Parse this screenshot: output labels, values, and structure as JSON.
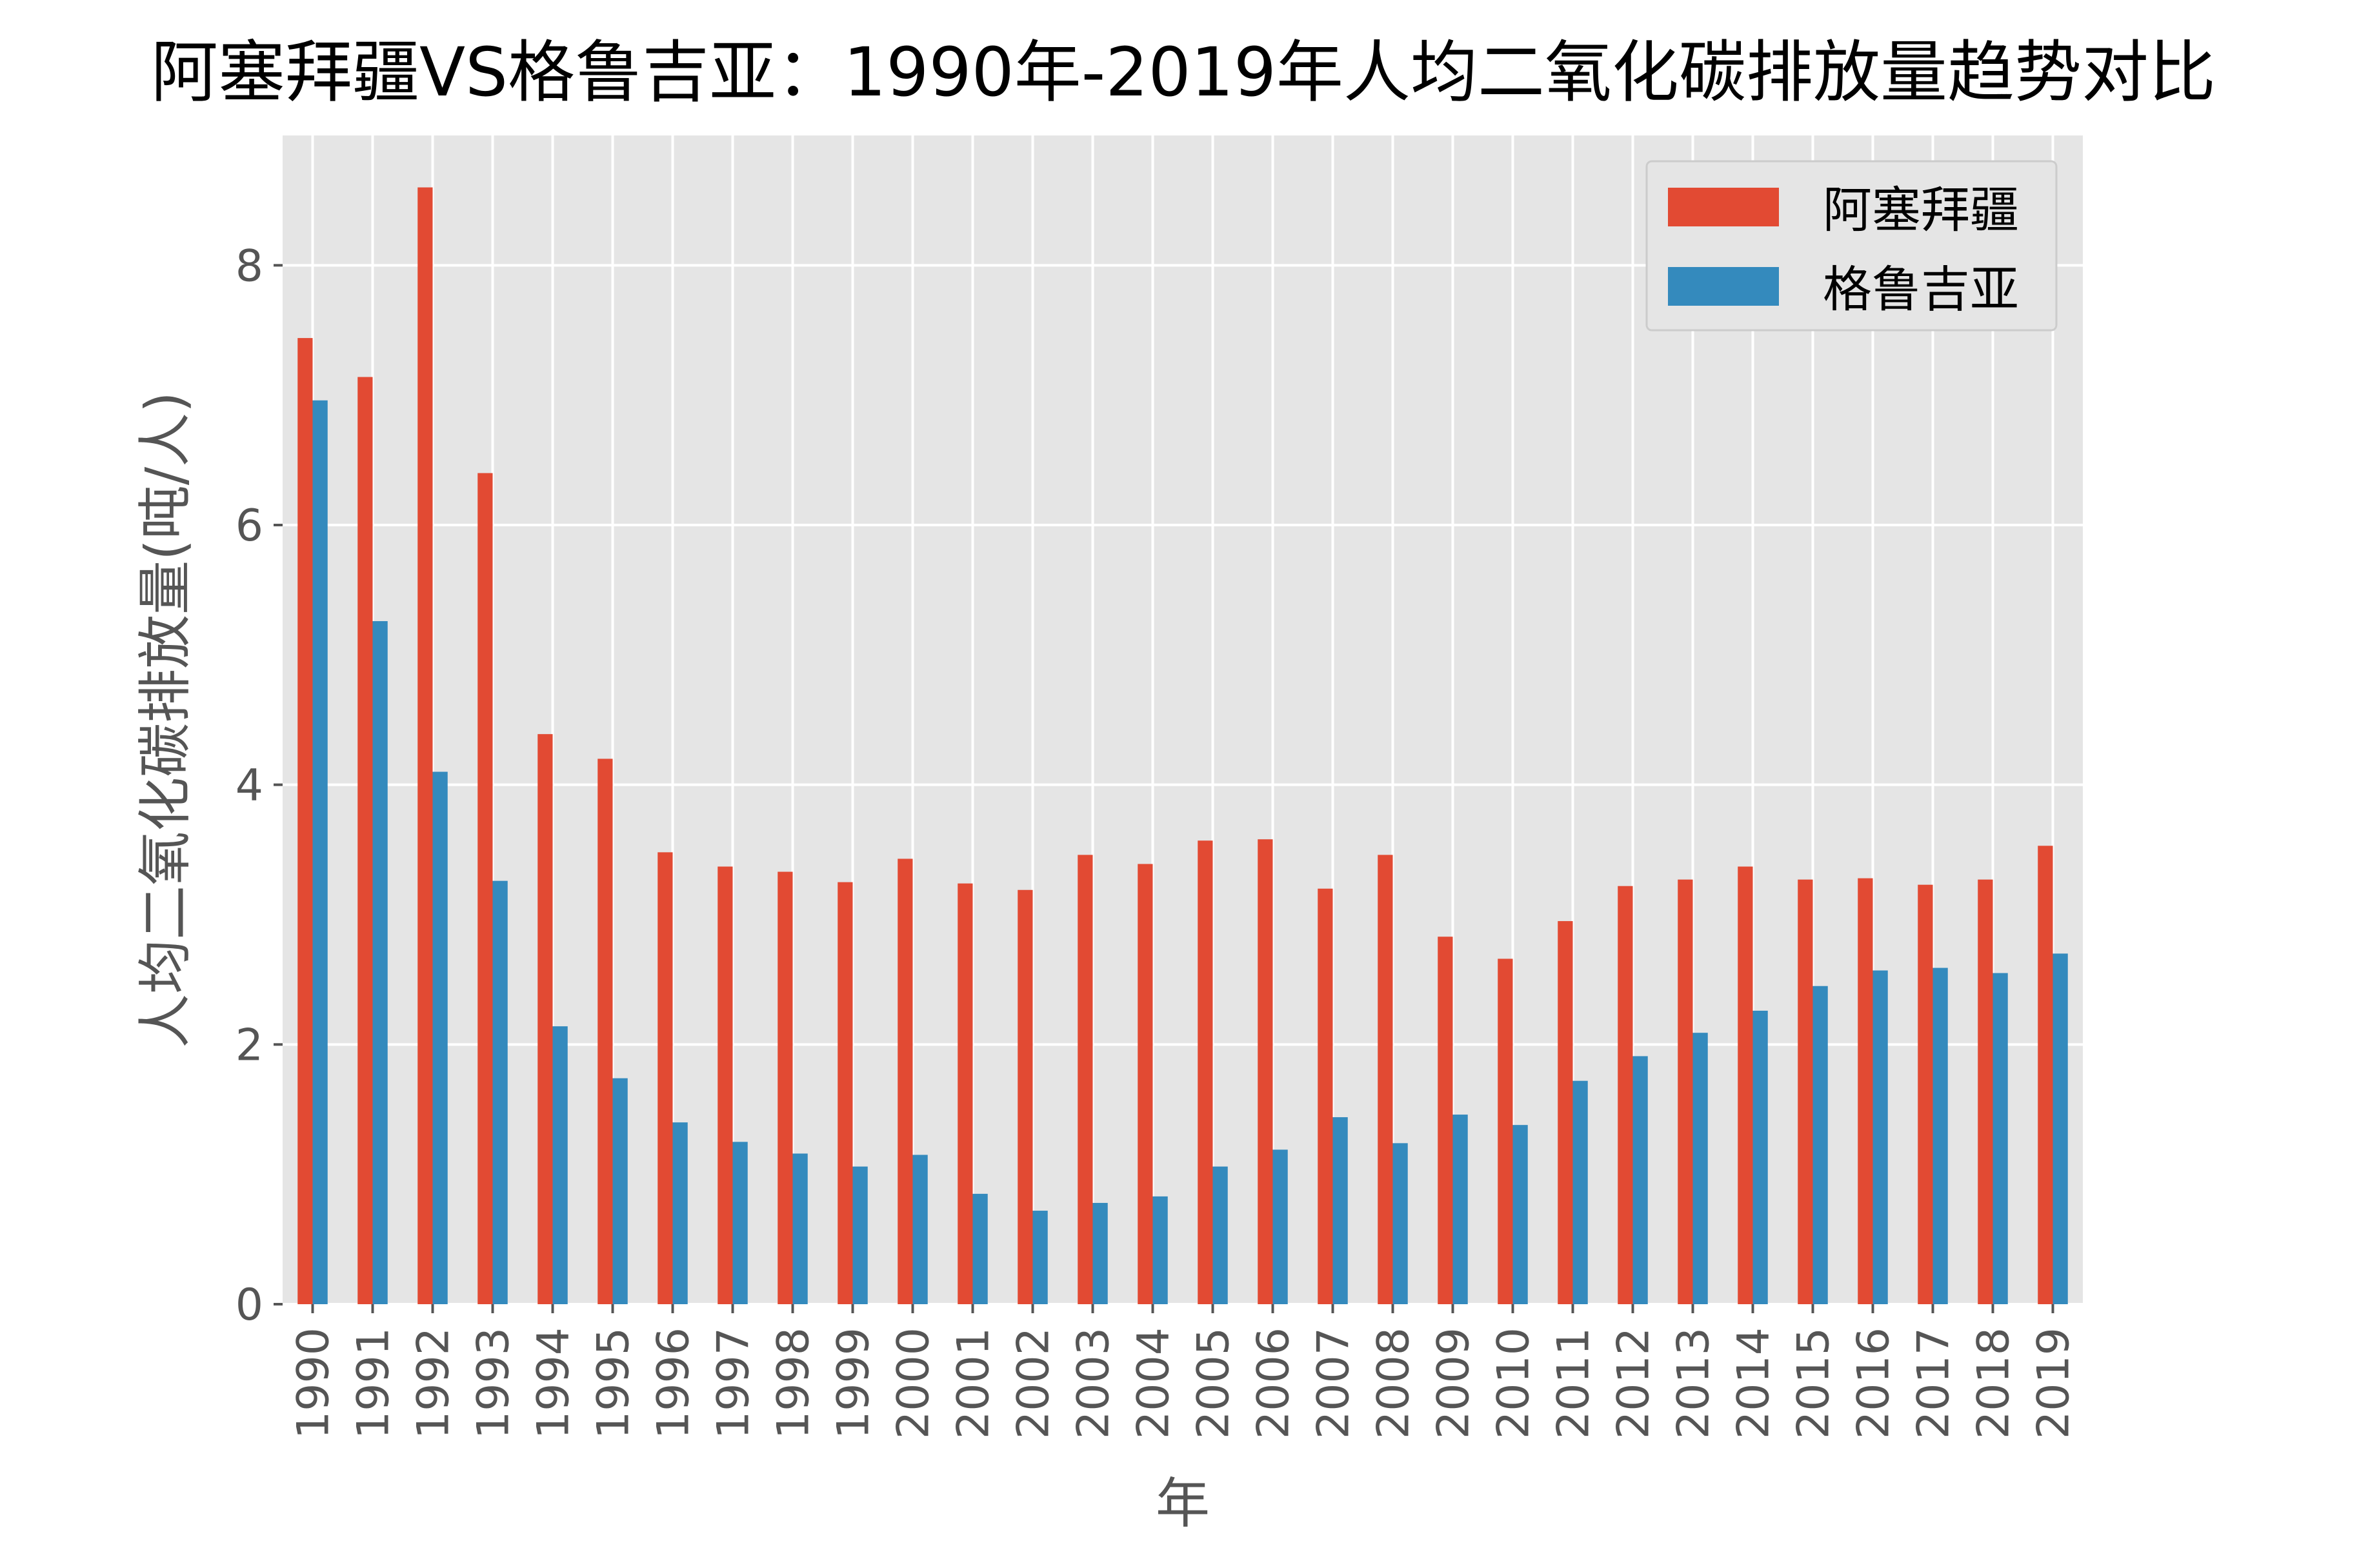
{
  "chart_data": {
    "type": "bar",
    "title": "阿塞拜疆VS格鲁吉亚：1990年-2019年人均二氧化碳排放量趋势对比",
    "xlabel": "年",
    "ylabel": "人均二氧化碳排放量(吨/人)",
    "ylim": [
      0,
      9.0
    ],
    "yticks": [
      0,
      2,
      4,
      6,
      8
    ],
    "grid": true,
    "legend_position": "top-right",
    "categories": [
      "1990",
      "1991",
      "1992",
      "1993",
      "1994",
      "1995",
      "1996",
      "1997",
      "1998",
      "1999",
      "2000",
      "2001",
      "2002",
      "2003",
      "2004",
      "2005",
      "2006",
      "2007",
      "2008",
      "2009",
      "2010",
      "2011",
      "2012",
      "2013",
      "2014",
      "2015",
      "2016",
      "2017",
      "2018",
      "2019"
    ],
    "series": [
      {
        "name": "阿塞拜疆",
        "color": "#E24A33",
        "values": [
          7.44,
          7.14,
          8.6,
          6.4,
          4.39,
          4.2,
          3.48,
          3.37,
          3.33,
          3.25,
          3.43,
          3.24,
          3.19,
          3.46,
          3.39,
          3.57,
          3.58,
          3.2,
          3.46,
          2.83,
          2.66,
          2.95,
          3.22,
          3.27,
          3.37,
          3.27,
          3.28,
          3.23,
          3.27,
          3.53
        ]
      },
      {
        "name": "格鲁吉亚",
        "color": "#348ABD",
        "values": [
          6.96,
          5.26,
          4.1,
          3.26,
          2.14,
          1.74,
          1.4,
          1.25,
          1.16,
          1.06,
          1.15,
          0.85,
          0.72,
          0.78,
          0.83,
          1.06,
          1.19,
          1.44,
          1.24,
          1.46,
          1.38,
          1.72,
          1.91,
          2.09,
          2.26,
          2.45,
          2.57,
          2.59,
          2.55,
          2.7
        ]
      }
    ]
  },
  "colors": {
    "plot_background": "#E5E5E5",
    "grid": "#FFFFFF",
    "text": "#000000",
    "tick_text": "#555555"
  }
}
